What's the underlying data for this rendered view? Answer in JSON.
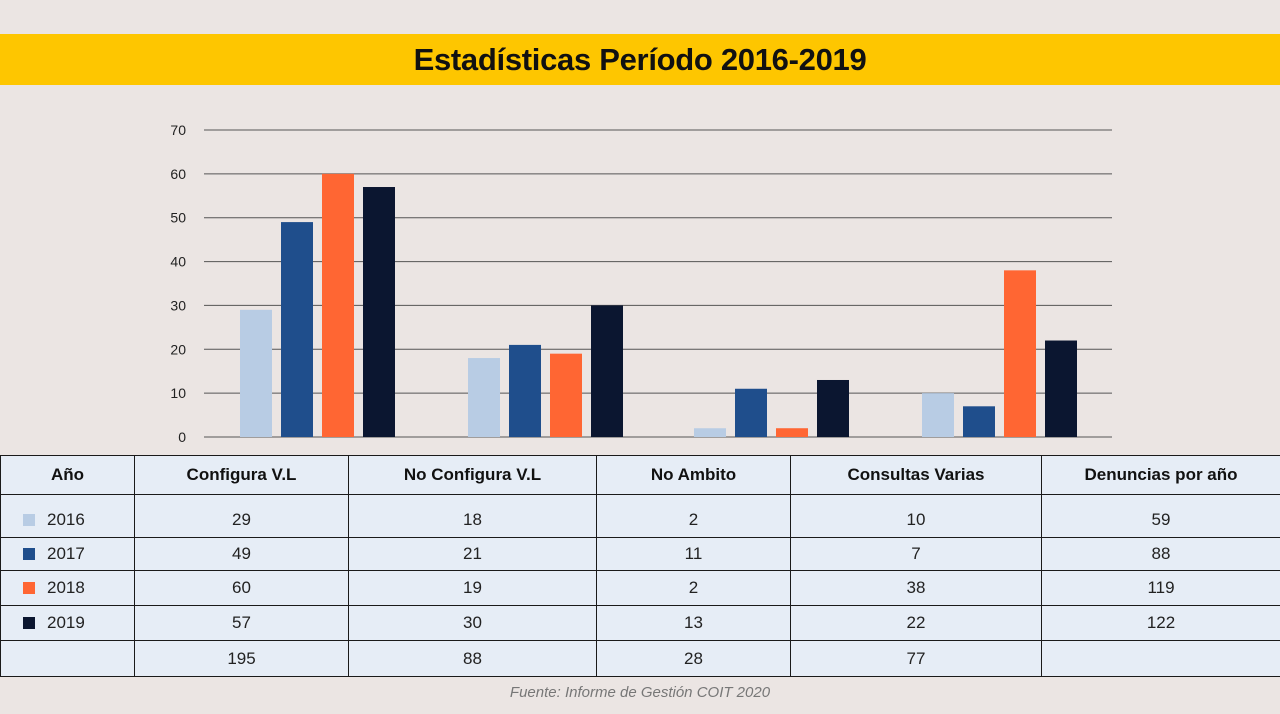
{
  "title": "Estadísticas Período 2016-2019",
  "source": "Fuente: Informe de Gestión COIT 2020",
  "colors": {
    "2016": "#b8cce4",
    "2017": "#1f4e8c",
    "2018": "#ff6633",
    "2019": "#0b1630",
    "title_band": "#fec600"
  },
  "chart_data": {
    "type": "bar",
    "title": "Estadísticas Período 2016-2019",
    "categories": [
      "Configura V.L",
      "No Configura V.L",
      "No Ambito",
      "Consultas Varias"
    ],
    "series": [
      {
        "name": "2016",
        "values": [
          29,
          18,
          2,
          10
        ]
      },
      {
        "name": "2017",
        "values": [
          49,
          21,
          11,
          7
        ]
      },
      {
        "name": "2018",
        "values": [
          60,
          19,
          2,
          38
        ]
      },
      {
        "name": "2019",
        "values": [
          57,
          30,
          13,
          22
        ]
      }
    ],
    "yticks": [
      "0",
      "10",
      "20",
      "30",
      "40",
      "50",
      "60",
      "70"
    ],
    "ylim": [
      0,
      70
    ],
    "grid": true,
    "xlabel": "",
    "ylabel": ""
  },
  "table": {
    "headers": [
      "Año",
      "Configura V.L",
      "No Configura V.L",
      "No Ambito",
      "Consultas Varias",
      "Denuncias por año"
    ],
    "rows": [
      {
        "year": "2016",
        "values": [
          "29",
          "18",
          "2",
          "10",
          "59"
        ]
      },
      {
        "year": "2017",
        "values": [
          "49",
          "21",
          "11",
          "7",
          "88"
        ]
      },
      {
        "year": "2018",
        "values": [
          "60",
          "19",
          "2",
          "38",
          "119"
        ]
      },
      {
        "year": "2019",
        "values": [
          "57",
          "30",
          "13",
          "22",
          "122"
        ]
      }
    ],
    "totals": [
      "195",
      "88",
      "28",
      "77"
    ]
  }
}
